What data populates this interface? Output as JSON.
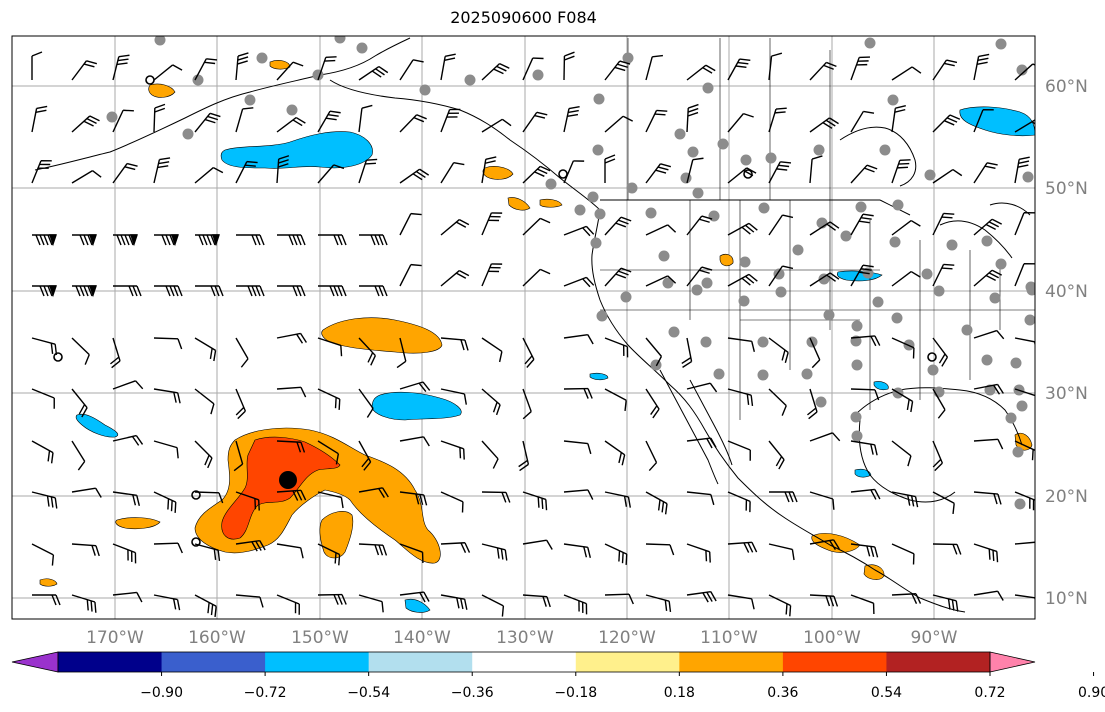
{
  "title": "2025090600 F084",
  "map": {
    "lon_ticks": [
      "170°W",
      "160°W",
      "150°W",
      "140°W",
      "130°W",
      "120°W",
      "110°W",
      "100°W",
      "90°W"
    ],
    "lat_ticks": [
      "60°N",
      "50°N",
      "40°N",
      "30°N",
      "20°N",
      "10°N"
    ]
  },
  "colorbar": {
    "ticks": [
      "−0.90",
      "−0.72",
      "−0.54",
      "−0.36",
      "−0.18",
      "0.18",
      "0.36",
      "0.54",
      "0.72",
      "0.90"
    ],
    "colors": [
      "#9a32cd",
      "#00008b",
      "#3a5fcd",
      "#00bfff",
      "#b2dfee",
      "#ffffff",
      "#fff08c",
      "#ffa500",
      "#ff4500",
      "#b22222",
      "#ff82ab"
    ]
  }
}
